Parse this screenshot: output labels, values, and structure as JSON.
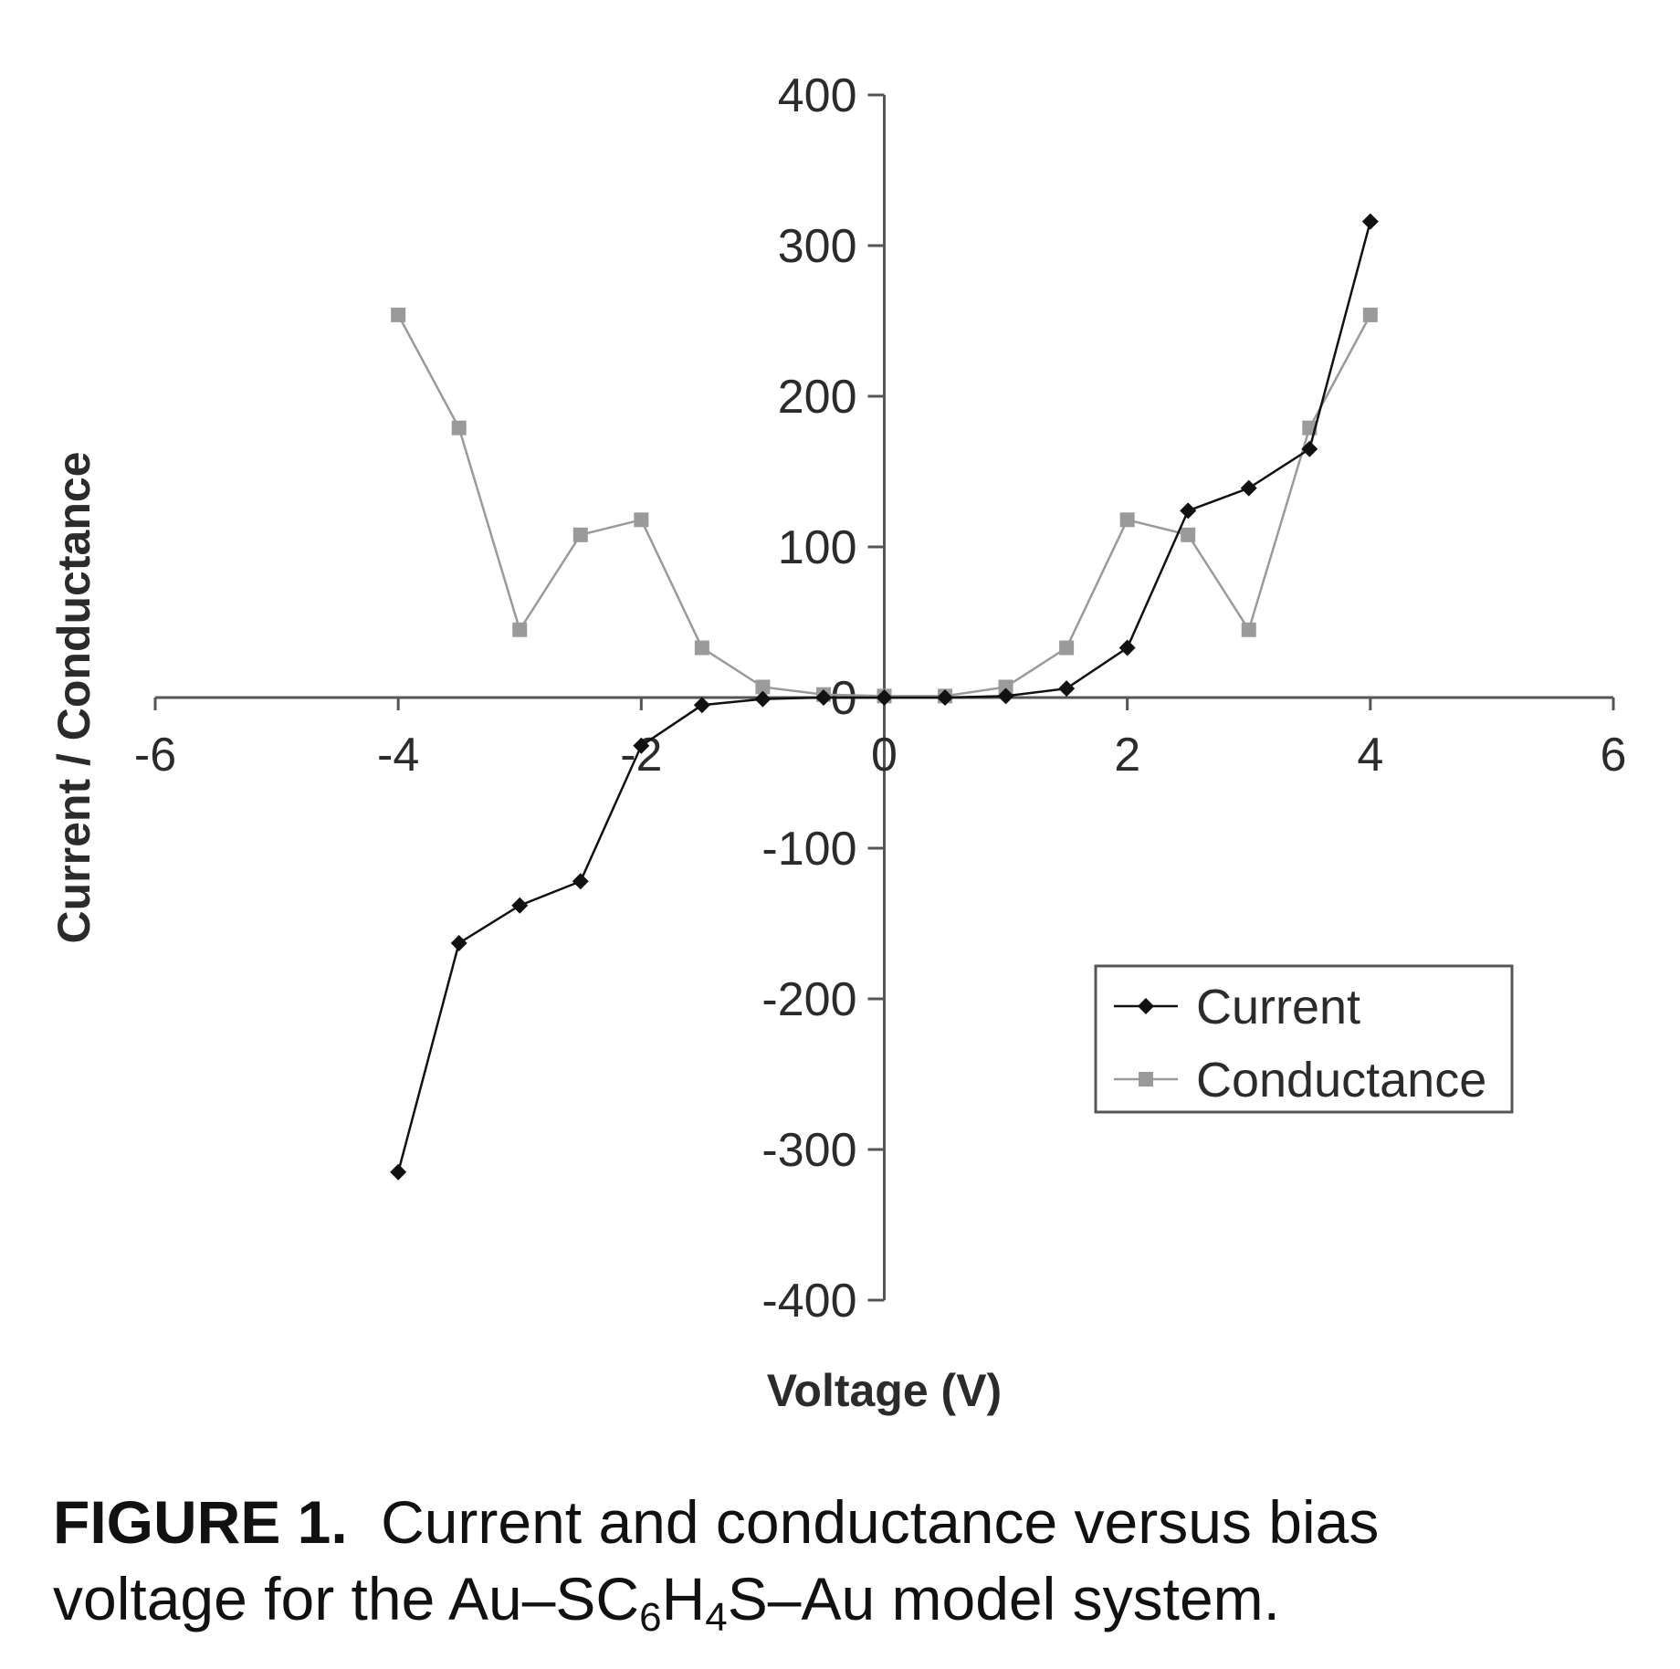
{
  "chart_data": {
    "type": "line",
    "xlabel": "Voltage (V)",
    "ylabel": "Current / Conductance",
    "xlim": [
      -6,
      6
    ],
    "ylim": [
      -400,
      400
    ],
    "xticks": [
      -6,
      -4,
      -2,
      0,
      2,
      4,
      6
    ],
    "yticks": [
      -400,
      -300,
      -200,
      -100,
      0,
      100,
      200,
      300,
      400
    ],
    "grid": false,
    "legend_position": "lower-right",
    "series": [
      {
        "name": "Current",
        "color": "#111111",
        "marker": "diamond",
        "x": [
          -4,
          -3.5,
          -3,
          -2.5,
          -2,
          -1.5,
          -1,
          -0.5,
          0,
          0.5,
          1,
          1.5,
          2,
          2.5,
          3,
          3.5,
          4
        ],
        "y": [
          -315,
          -163,
          -138,
          -122,
          -32,
          -5,
          -1,
          0,
          0,
          0,
          1,
          6,
          33,
          124,
          139,
          165,
          316
        ]
      },
      {
        "name": "Conductance",
        "color": "#9a9a9a",
        "marker": "square",
        "x": [
          -4,
          -3.5,
          -3,
          -2.5,
          -2,
          -1.5,
          -1,
          -0.5,
          0,
          0.5,
          1,
          1.5,
          2,
          2.5,
          3,
          3.5,
          4
        ],
        "y": [
          254,
          179,
          45,
          108,
          118,
          33,
          7,
          2,
          1,
          1,
          7,
          33,
          118,
          108,
          45,
          179,
          254
        ]
      }
    ]
  },
  "caption": {
    "label": "FIGURE 1.",
    "text_line1": "Current and conductance versus bias",
    "text_line2_pre": "voltage for the Au–SC",
    "sub1": "6",
    "mid": "H",
    "sub2": "4",
    "text_line2_post": "S–Au model system."
  }
}
